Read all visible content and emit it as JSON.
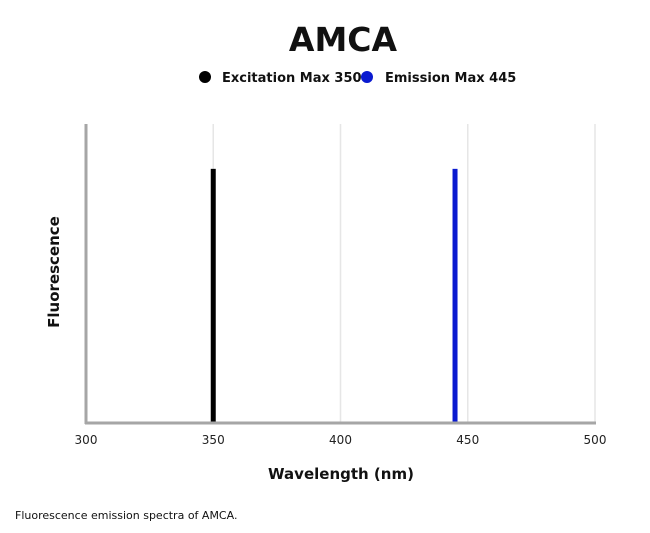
{
  "chart_data": {
    "type": "bar",
    "title": "AMCA",
    "xlabel": "Wavelength (nm)",
    "ylabel": "Fluorescence",
    "xlim": [
      300,
      500
    ],
    "ylim": [
      0,
      1
    ],
    "x_ticks": [
      "300",
      "350",
      "400",
      "450",
      "500"
    ],
    "grid": "vertical",
    "legend_position": "top-center",
    "series": [
      {
        "name": "Excitation Max 350",
        "x": 350,
        "value": 0.85,
        "color": "#000000"
      },
      {
        "name": "Emission Max 445",
        "x": 445,
        "value": 0.85,
        "color": "#0a1ad0"
      }
    ]
  },
  "caption": "Fluorescence emission spectra of AMCA."
}
